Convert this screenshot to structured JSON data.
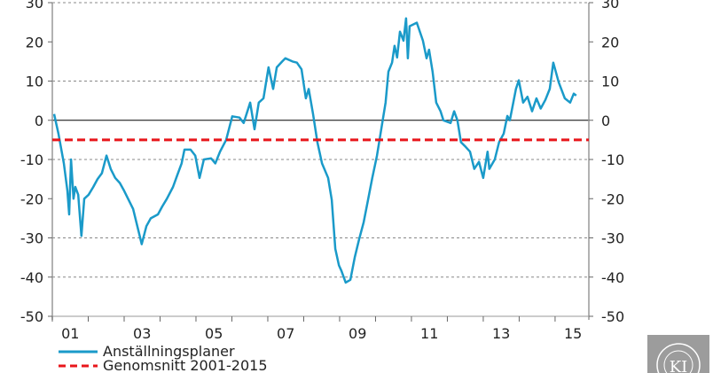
{
  "chart_data": {
    "type": "line",
    "title": "",
    "xlabel": "",
    "ylabel": "",
    "ylim": [
      -50,
      30
    ],
    "xlim": [
      2001,
      2015.94
    ],
    "y_ticks": [
      "30",
      "20",
      "10",
      "0",
      "-10",
      "-20",
      "-30",
      "-40",
      "-50"
    ],
    "y_tick_values": [
      30,
      20,
      10,
      0,
      -10,
      -20,
      -30,
      -40,
      -50
    ],
    "x_tick_labels": [
      "01",
      "03",
      "05",
      "07",
      "09",
      "11",
      "13",
      "15"
    ],
    "x_tick_label_years": [
      2001,
      2003,
      2005,
      2007,
      2009,
      2011,
      2013,
      2015
    ],
    "dashed_gridlines_at": [
      30,
      10,
      -10,
      -30,
      -40
    ],
    "zero_line": true,
    "dual_y_axis": true,
    "legend_placement": "bottom-left",
    "series": [
      {
        "name": "Anställningsplaner",
        "color": "#1a9ac9",
        "style": "solid",
        "x": [
          2001.05,
          2001.17,
          2001.32,
          2001.42,
          2001.47,
          2001.52,
          2001.59,
          2001.64,
          2001.72,
          2001.81,
          2001.89,
          2002.01,
          2002.14,
          2002.26,
          2002.38,
          2002.51,
          2002.63,
          2002.75,
          2002.88,
          2003.0,
          2003.25,
          2003.49,
          2003.62,
          2003.74,
          2003.94,
          2004.06,
          2004.19,
          2004.36,
          2004.48,
          2004.6,
          2004.68,
          2004.85,
          2004.98,
          2005.1,
          2005.22,
          2005.42,
          2005.54,
          2005.67,
          2005.84,
          2006.01,
          2006.21,
          2006.33,
          2006.51,
          2006.63,
          2006.75,
          2006.88,
          2007.02,
          2007.15,
          2007.25,
          2007.4,
          2007.49,
          2007.69,
          2007.81,
          2007.94,
          2008.06,
          2008.14,
          2008.26,
          2008.38,
          2008.51,
          2008.68,
          2008.78,
          2008.88,
          2008.98,
          2009.05,
          2009.17,
          2009.3,
          2009.42,
          2009.54,
          2009.67,
          2009.79,
          2009.91,
          2010.04,
          2010.16,
          2010.28,
          2010.36,
          2010.46,
          2010.53,
          2010.6,
          2010.68,
          2010.78,
          2010.85,
          2010.9,
          2010.95,
          2011.15,
          2011.32,
          2011.42,
          2011.49,
          2011.59,
          2011.69,
          2011.81,
          2011.89,
          2012.09,
          2012.19,
          2012.28,
          2012.38,
          2012.51,
          2012.63,
          2012.75,
          2012.88,
          2013.0,
          2013.12,
          2013.17,
          2013.32,
          2013.44,
          2013.57,
          2013.67,
          2013.74,
          2013.91,
          2013.99,
          2014.11,
          2014.23,
          2014.36,
          2014.48,
          2014.6,
          2014.73,
          2014.85,
          2014.95,
          2015.1,
          2015.27,
          2015.42,
          2015.52,
          2015.59
        ],
        "values": [
          1.6,
          -3.4,
          -11,
          -18,
          -24,
          -10,
          -20,
          -17,
          -19,
          -29.5,
          -20,
          -19,
          -17,
          -15,
          -13.5,
          -9,
          -12.5,
          -14.7,
          -16,
          -18,
          -22.6,
          -31.6,
          -27,
          -25,
          -24,
          -22,
          -20,
          -17,
          -14,
          -11,
          -7.5,
          -7.5,
          -9,
          -14.7,
          -10,
          -9.7,
          -11,
          -8,
          -5,
          1,
          0.7,
          -0.7,
          4.5,
          -2.3,
          4.5,
          5.6,
          13.5,
          8,
          13.5,
          15,
          15.8,
          15,
          14.7,
          13,
          5.6,
          8,
          1.6,
          -5.6,
          -11,
          -14.7,
          -20.3,
          -32.8,
          -37,
          -38.4,
          -41.4,
          -40.7,
          -35,
          -30.5,
          -26,
          -20.3,
          -14.7,
          -9,
          -2.3,
          4.5,
          12.4,
          14.7,
          19,
          16,
          22.6,
          20.3,
          26,
          15.8,
          24,
          24.9,
          20.3,
          15.8,
          18,
          12.4,
          4.5,
          2.3,
          0,
          -0.7,
          2.3,
          0,
          -5.6,
          -6.8,
          -8,
          -12.4,
          -10.6,
          -14.7,
          -8,
          -12.4,
          -10,
          -5.6,
          -3.4,
          1.1,
          0,
          8,
          10.2,
          4.5,
          6,
          2.3,
          5.6,
          3,
          5.2,
          8,
          14.7,
          9.7,
          5.6,
          4.5,
          6.8,
          6.3
        ]
      },
      {
        "name": "Genomsnitt 2001-2015",
        "color": "#e8161b",
        "style": "dashed",
        "x": [
          2001,
          2015.94
        ],
        "values": [
          -5,
          -5
        ]
      }
    ]
  },
  "logo": {
    "text": "KI",
    "ring_text": "KONJUNKTUR"
  }
}
